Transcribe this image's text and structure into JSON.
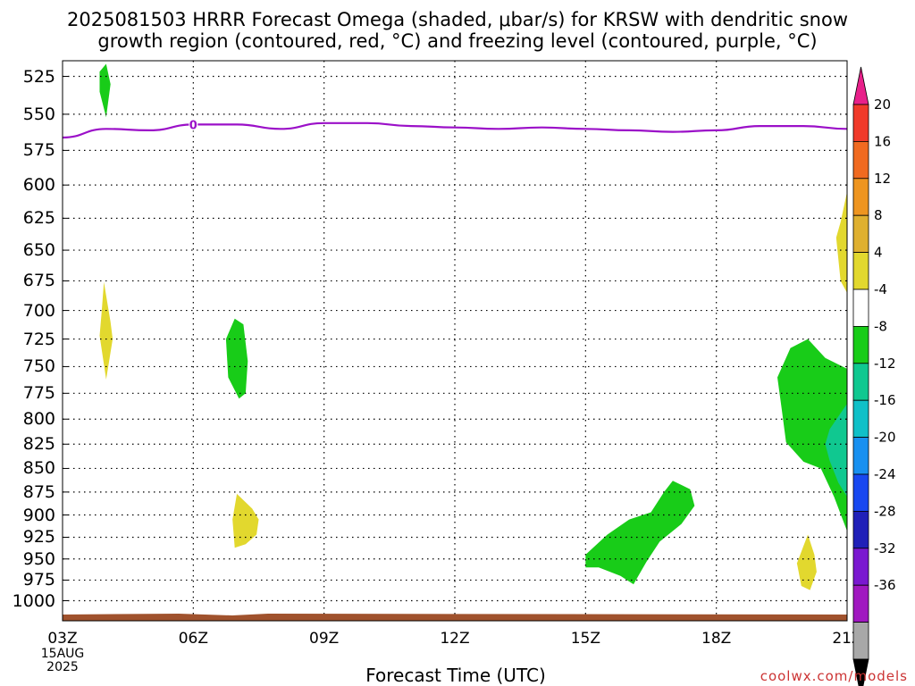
{
  "title_line1": "2025081503 HRRR Forecast Omega (shaded, μbar/s) for KRSW with dendritic snow",
  "title_line2": "growth region (contoured, red, °C) and freezing level (contoured, purple, °C)",
  "xaxis_title": "Forecast Time (UTC)",
  "credit": "coolwx.com/models",
  "chart_data": {
    "type": "heatmap",
    "x_ticks": [
      "03Z",
      "06Z",
      "09Z",
      "12Z",
      "15Z",
      "18Z",
      "21Z"
    ],
    "x_hours": [
      3,
      6,
      9,
      12,
      15,
      18,
      21
    ],
    "start_date_label": [
      "15AUG",
      "2025"
    ],
    "y_ticks": [
      525,
      550,
      575,
      600,
      625,
      650,
      675,
      700,
      725,
      750,
      775,
      800,
      825,
      850,
      875,
      900,
      925,
      950,
      975,
      1000
    ],
    "y_axis": "pressure (hPa), log scale, inverted",
    "xlim": [
      3,
      21
    ],
    "ylim_hpa": [
      515,
      1025
    ],
    "grid": true,
    "colorbar": {
      "labels": [
        "20",
        "16",
        "12",
        "8",
        "4",
        "-4",
        "-8",
        "-12",
        "-16",
        "-20",
        "-24",
        "-28",
        "-32",
        "-36"
      ],
      "colors": [
        "#e8208a",
        "#f03a2a",
        "#f06a20",
        "#ee9520",
        "#dfb030",
        "#e2d82e",
        "#ffffff",
        "#18cc18",
        "#10c890",
        "#10c0c8",
        "#1890f0",
        "#1848f0",
        "#2020b8",
        "#7a18d0",
        "#a018c0",
        "#a8a8a8",
        "#000000"
      ]
    },
    "freezing_level": {
      "contour_label": "0",
      "color": "#9b10c8",
      "points": [
        [
          3.0,
          566
        ],
        [
          4.0,
          560
        ],
        [
          5.0,
          561
        ],
        [
          6.0,
          557
        ],
        [
          7.0,
          557
        ],
        [
          8.0,
          560
        ],
        [
          9.0,
          556
        ],
        [
          10.0,
          556
        ],
        [
          11.0,
          558
        ],
        [
          12.0,
          559
        ],
        [
          13.0,
          560
        ],
        [
          14.0,
          559
        ],
        [
          15.0,
          560
        ],
        [
          16.0,
          561
        ],
        [
          17.0,
          562
        ],
        [
          18.0,
          561
        ],
        [
          19.0,
          558
        ],
        [
          20.0,
          558
        ],
        [
          21.0,
          560
        ]
      ]
    },
    "omega_regions": [
      {
        "value_bin": "-4 to -8",
        "color": "#18cc18",
        "points": [
          [
            3.85,
            522
          ],
          [
            4.0,
            517
          ],
          [
            4.1,
            530
          ],
          [
            4.0,
            552
          ],
          [
            3.85,
            535
          ]
        ]
      },
      {
        "value_bin": "4 to 8",
        "color": "#e2d82e",
        "points": [
          [
            3.95,
            676
          ],
          [
            4.1,
            710
          ],
          [
            4.15,
            725
          ],
          [
            4.0,
            762
          ],
          [
            3.85,
            722
          ],
          [
            3.9,
            700
          ]
        ]
      },
      {
        "value_bin": "-4 to -8",
        "color": "#18cc18",
        "points": [
          [
            6.95,
            707
          ],
          [
            7.15,
            712
          ],
          [
            7.25,
            745
          ],
          [
            7.2,
            775
          ],
          [
            7.05,
            780
          ],
          [
            6.8,
            760
          ],
          [
            6.75,
            725
          ]
        ]
      },
      {
        "value_bin": "4 to 8",
        "color": "#e2d82e",
        "points": [
          [
            7.0,
            877
          ],
          [
            7.35,
            893
          ],
          [
            7.5,
            905
          ],
          [
            7.45,
            922
          ],
          [
            7.2,
            933
          ],
          [
            6.95,
            937
          ],
          [
            6.9,
            905
          ]
        ]
      },
      {
        "value_bin": "4 to 8",
        "color": "#e2d82e",
        "points": [
          [
            20.85,
            628
          ],
          [
            21.0,
            605
          ],
          [
            21.0,
            685
          ],
          [
            20.85,
            675
          ],
          [
            20.75,
            640
          ]
        ]
      },
      {
        "value_bin": "-4 to -8",
        "color": "#18cc18",
        "points": [
          [
            19.4,
            760
          ],
          [
            19.7,
            733
          ],
          [
            20.1,
            725
          ],
          [
            20.5,
            742
          ],
          [
            21.0,
            752
          ],
          [
            21.0,
            918
          ],
          [
            20.7,
            880
          ],
          [
            20.4,
            850
          ],
          [
            20.0,
            843
          ],
          [
            19.6,
            823
          ],
          [
            19.5,
            790
          ]
        ]
      },
      {
        "value_bin": "-8 to -12",
        "color": "#10c890",
        "points": [
          [
            20.6,
            810
          ],
          [
            21.0,
            785
          ],
          [
            21.0,
            880
          ],
          [
            20.8,
            865
          ],
          [
            20.6,
            842
          ],
          [
            20.5,
            825
          ]
        ]
      },
      {
        "value_bin": "-4 to -8",
        "color": "#18cc18",
        "points": [
          [
            15.0,
            945
          ],
          [
            15.5,
            922
          ],
          [
            16.0,
            905
          ],
          [
            16.5,
            897
          ],
          [
            16.8,
            875
          ],
          [
            17.0,
            863
          ],
          [
            17.4,
            872
          ],
          [
            17.5,
            890
          ],
          [
            17.2,
            910
          ],
          [
            16.7,
            930
          ],
          [
            16.4,
            953
          ],
          [
            16.1,
            980
          ],
          [
            15.8,
            970
          ],
          [
            15.3,
            960
          ],
          [
            15.0,
            960
          ]
        ]
      },
      {
        "value_bin": "4 to 8",
        "color": "#e2d82e",
        "points": [
          [
            20.0,
            935
          ],
          [
            20.1,
            922
          ],
          [
            20.25,
            945
          ],
          [
            20.3,
            965
          ],
          [
            20.15,
            987
          ],
          [
            19.95,
            982
          ],
          [
            19.85,
            955
          ]
        ]
      }
    ],
    "surface_terrain": {
      "color": "#a0522d"
    }
  }
}
